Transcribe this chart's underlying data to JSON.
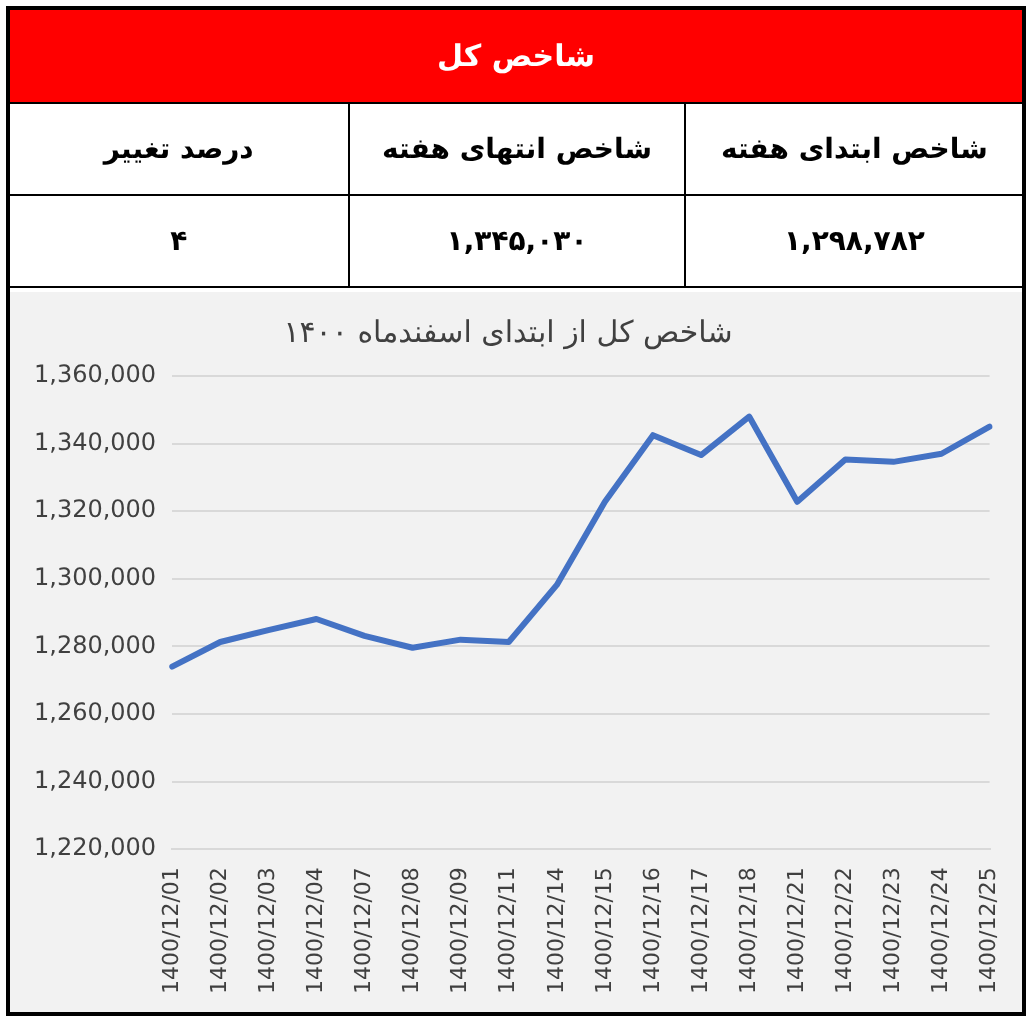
{
  "chart_data": {
    "type": "line",
    "title": "شاخص کل از ابتدای اسفندماه ۱۴۰۰",
    "annotations": [
      "شاخص کل",
      "شاخص ابتدای هفته",
      "شاخص انتهای هفته",
      "درصد تغییر",
      "۱,۲۹۸,۷۸۲",
      "۱,۳۴۵,۰۳۰",
      "۴"
    ],
    "categories": [
      "1400/12/01",
      "1400/12/02",
      "1400/12/03",
      "1400/12/04",
      "1400/12/07",
      "1400/12/08",
      "1400/12/09",
      "1400/12/11",
      "1400/12/14",
      "1400/12/15",
      "1400/12/16",
      "1400/12/17",
      "1400/12/18",
      "1400/12/21",
      "1400/12/22",
      "1400/12/23",
      "1400/12/24",
      "1400/12/25"
    ],
    "series": [
      {
        "color": "#4472c4",
        "values": [
          1274000,
          1281300,
          1284800,
          1288100,
          1283100,
          1279600,
          1282000,
          1281300,
          1298200,
          1322800,
          1342500,
          1336600,
          1348000,
          1322800,
          1335300,
          1334600,
          1337000,
          1345000
        ]
      }
    ],
    "ylim": [
      1220000,
      1360000
    ],
    "yticks": [
      {
        "value": 1220000,
        "label": "1,220,000"
      },
      {
        "value": 1240000,
        "label": "1,240,000"
      },
      {
        "value": 1260000,
        "label": "1,260,000"
      },
      {
        "value": 1280000,
        "label": "1,280,000"
      },
      {
        "value": 1300000,
        "label": "1,300,000"
      },
      {
        "value": 1320000,
        "label": "1,320,000"
      },
      {
        "value": 1340000,
        "label": "1,340,000"
      },
      {
        "value": 1360000,
        "label": "1,360,000"
      }
    ],
    "grid": "y",
    "legend": false,
    "marker": "none",
    "line_style": "solid"
  }
}
